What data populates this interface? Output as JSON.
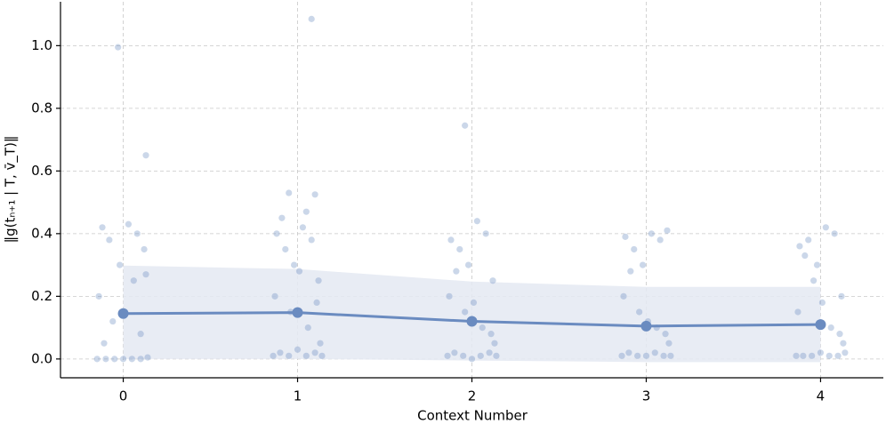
{
  "chart_data": {
    "type": "strip",
    "x_label": "Context Number",
    "y_label": "‖g(tₙ₊₁ | T, v̄_T)‖",
    "xlim": [
      -0.36,
      4.36
    ],
    "xticks": [
      0,
      1,
      2,
      3,
      4
    ],
    "ylim": [
      -0.06,
      1.14
    ],
    "yticks": [
      {
        "value": 0,
        "label": "0.0"
      },
      0.2,
      0.4,
      0.6,
      0.8,
      {
        "value": 1,
        "label": "1.0"
      }
    ],
    "grid": true,
    "color": "#6a8bc0",
    "band_color": "#e4e9f2",
    "points": {
      "x": [
        -0.15,
        -0.1,
        -0.05,
        0.0,
        0.05,
        0.1,
        0.14,
        -0.12,
        -0.08,
        0.03,
        0.08,
        -0.02,
        0.12,
        -0.14,
        0.06,
        -0.06,
        0.1,
        0.01,
        -0.11,
        0.13,
        -0.03,
        0.13,
        0.86,
        0.9,
        0.95,
        1.0,
        1.05,
        1.1,
        1.14,
        0.88,
        0.93,
        0.98,
        1.03,
        1.08,
        1.12,
        0.87,
        0.96,
        1.06,
        1.13,
        0.91,
        1.01,
        1.11,
        1.08,
        0.95,
        1.1,
        1.05,
        1.86,
        1.9,
        1.95,
        2.0,
        2.05,
        2.1,
        2.14,
        1.88,
        1.93,
        1.98,
        2.03,
        2.08,
        2.12,
        1.87,
        1.96,
        2.06,
        2.13,
        1.91,
        2.01,
        2.11,
        1.96,
        2.86,
        2.9,
        2.95,
        3.0,
        3.05,
        3.1,
        3.14,
        2.88,
        2.93,
        2.98,
        3.03,
        3.08,
        3.12,
        2.87,
        2.96,
        3.06,
        3.13,
        2.91,
        3.01,
        3.11,
        3.86,
        3.9,
        3.95,
        4.0,
        4.05,
        4.1,
        4.14,
        3.88,
        3.93,
        3.98,
        4.03,
        4.08,
        4.12,
        3.87,
        3.96,
        4.06,
        4.13,
        3.91,
        4.01,
        4.11
      ],
      "values": [
        0,
        0,
        0,
        0,
        0,
        0,
        0.005,
        0.42,
        0.38,
        0.43,
        0.4,
        0.3,
        0.35,
        0.2,
        0.25,
        0.12,
        0.08,
        0.15,
        0.05,
        0.27,
        0.995,
        0.65,
        0.01,
        0.02,
        0.01,
        0.03,
        0.01,
        0.02,
        0.01,
        0.4,
        0.35,
        0.3,
        0.42,
        0.38,
        0.25,
        0.2,
        0.15,
        0.1,
        0.05,
        0.45,
        0.28,
        0.18,
        1.085,
        0.53,
        0.525,
        0.47,
        0.01,
        0.02,
        0.01,
        0,
        0.01,
        0.02,
        0.01,
        0.38,
        0.35,
        0.3,
        0.44,
        0.4,
        0.25,
        0.2,
        0.15,
        0.1,
        0.05,
        0.28,
        0.18,
        0.08,
        0.745,
        0.01,
        0.02,
        0.01,
        0.01,
        0.02,
        0.01,
        0.01,
        0.39,
        0.35,
        0.3,
        0.4,
        0.38,
        0.41,
        0.2,
        0.15,
        0.1,
        0.05,
        0.28,
        0.12,
        0.08,
        0.01,
        0.01,
        0.01,
        0.02,
        0.01,
        0.01,
        0.02,
        0.36,
        0.38,
        0.3,
        0.42,
        0.4,
        0.2,
        0.15,
        0.25,
        0.1,
        0.05,
        0.33,
        0.18,
        0.08
      ]
    },
    "mean": {
      "x": [
        0,
        1,
        2,
        3,
        4
      ],
      "values": [
        0.145,
        0.148,
        0.12,
        0.105,
        0.11
      ]
    },
    "band": {
      "x": [
        0,
        1,
        2,
        3,
        4
      ],
      "lower": [
        0,
        0,
        -0.005,
        -0.01,
        -0.01
      ],
      "upper": [
        0.298,
        0.287,
        0.247,
        0.23,
        0.23
      ]
    }
  }
}
